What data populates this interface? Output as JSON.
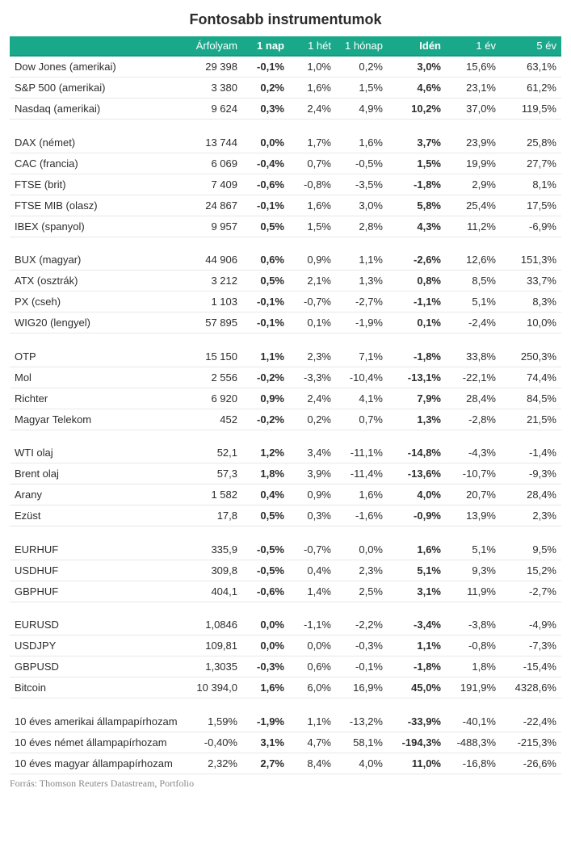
{
  "title": "Fontosabb instrumentumok",
  "footer": "Forrás: Thomson Reuters Datastream, Portfolio",
  "header_bg": "#1aa88a",
  "row_border": "#e8e8e8",
  "columns": [
    {
      "key": "name",
      "label": "",
      "bold": false,
      "align": "left"
    },
    {
      "key": "price",
      "label": "Árfolyam",
      "bold": false
    },
    {
      "key": "d1",
      "label": "1 nap",
      "bold": true
    },
    {
      "key": "w1",
      "label": "1 hét",
      "bold": false
    },
    {
      "key": "m1",
      "label": "1 hónap",
      "bold": false
    },
    {
      "key": "ytd",
      "label": "Idén",
      "bold": true
    },
    {
      "key": "y1",
      "label": "1 év",
      "bold": false
    },
    {
      "key": "y5",
      "label": "5 év",
      "bold": false
    }
  ],
  "groups": [
    [
      {
        "name": "Dow Jones (amerikai)",
        "price": "29 398",
        "d1": "-0,1%",
        "w1": "1,0%",
        "m1": "0,2%",
        "ytd": "3,0%",
        "y1": "15,6%",
        "y5": "63,1%"
      },
      {
        "name": "S&P 500 (amerikai)",
        "price": "3 380",
        "d1": "0,2%",
        "w1": "1,6%",
        "m1": "1,5%",
        "ytd": "4,6%",
        "y1": "23,1%",
        "y5": "61,2%"
      },
      {
        "name": "Nasdaq (amerikai)",
        "price": "9 624",
        "d1": "0,3%",
        "w1": "2,4%",
        "m1": "4,9%",
        "ytd": "10,2%",
        "y1": "37,0%",
        "y5": "119,5%"
      }
    ],
    [
      {
        "name": "DAX (német)",
        "price": "13 744",
        "d1": "0,0%",
        "w1": "1,7%",
        "m1": "1,6%",
        "ytd": "3,7%",
        "y1": "23,9%",
        "y5": "25,8%"
      },
      {
        "name": "CAC (francia)",
        "price": "6 069",
        "d1": "-0,4%",
        "w1": "0,7%",
        "m1": "-0,5%",
        "ytd": "1,5%",
        "y1": "19,9%",
        "y5": "27,7%"
      },
      {
        "name": "FTSE (brit)",
        "price": "7 409",
        "d1": "-0,6%",
        "w1": "-0,8%",
        "m1": "-3,5%",
        "ytd": "-1,8%",
        "y1": "2,9%",
        "y5": "8,1%"
      },
      {
        "name": "FTSE MIB (olasz)",
        "price": "24 867",
        "d1": "-0,1%",
        "w1": "1,6%",
        "m1": "3,0%",
        "ytd": "5,8%",
        "y1": "25,4%",
        "y5": "17,5%"
      },
      {
        "name": "IBEX (spanyol)",
        "price": "9 957",
        "d1": "0,5%",
        "w1": "1,5%",
        "m1": "2,8%",
        "ytd": "4,3%",
        "y1": "11,2%",
        "y5": "-6,9%"
      }
    ],
    [
      {
        "name": "BUX (magyar)",
        "price": "44 906",
        "d1": "0,6%",
        "w1": "0,9%",
        "m1": "1,1%",
        "ytd": "-2,6%",
        "y1": "12,6%",
        "y5": "151,3%"
      },
      {
        "name": "ATX (osztrák)",
        "price": "3 212",
        "d1": "0,5%",
        "w1": "2,1%",
        "m1": "1,3%",
        "ytd": "0,8%",
        "y1": "8,5%",
        "y5": "33,7%"
      },
      {
        "name": "PX (cseh)",
        "price": "1 103",
        "d1": "-0,1%",
        "w1": "-0,7%",
        "m1": "-2,7%",
        "ytd": "-1,1%",
        "y1": "5,1%",
        "y5": "8,3%"
      },
      {
        "name": "WIG20 (lengyel)",
        "price": "57 895",
        "d1": "-0,1%",
        "w1": "0,1%",
        "m1": "-1,9%",
        "ytd": "0,1%",
        "y1": "-2,4%",
        "y5": "10,0%"
      }
    ],
    [
      {
        "name": "OTP",
        "price": "15 150",
        "d1": "1,1%",
        "w1": "2,3%",
        "m1": "7,1%",
        "ytd": "-1,8%",
        "y1": "33,8%",
        "y5": "250,3%"
      },
      {
        "name": "Mol",
        "price": "2 556",
        "d1": "-0,2%",
        "w1": "-3,3%",
        "m1": "-10,4%",
        "ytd": "-13,1%",
        "y1": "-22,1%",
        "y5": "74,4%"
      },
      {
        "name": "Richter",
        "price": "6 920",
        "d1": "0,9%",
        "w1": "2,4%",
        "m1": "4,1%",
        "ytd": "7,9%",
        "y1": "28,4%",
        "y5": "84,5%"
      },
      {
        "name": "Magyar Telekom",
        "price": "452",
        "d1": "-0,2%",
        "w1": "0,2%",
        "m1": "0,7%",
        "ytd": "1,3%",
        "y1": "-2,8%",
        "y5": "21,5%"
      }
    ],
    [
      {
        "name": "WTI olaj",
        "price": "52,1",
        "d1": "1,2%",
        "w1": "3,4%",
        "m1": "-11,1%",
        "ytd": "-14,8%",
        "y1": "-4,3%",
        "y5": "-1,4%"
      },
      {
        "name": "Brent olaj",
        "price": "57,3",
        "d1": "1,8%",
        "w1": "3,9%",
        "m1": "-11,4%",
        "ytd": "-13,6%",
        "y1": "-10,7%",
        "y5": "-9,3%"
      },
      {
        "name": "Arany",
        "price": "1 582",
        "d1": "0,4%",
        "w1": "0,9%",
        "m1": "1,6%",
        "ytd": "4,0%",
        "y1": "20,7%",
        "y5": "28,4%"
      },
      {
        "name": "Ezüst",
        "price": "17,8",
        "d1": "0,5%",
        "w1": "0,3%",
        "m1": "-1,6%",
        "ytd": "-0,9%",
        "y1": "13,9%",
        "y5": "2,3%"
      }
    ],
    [
      {
        "name": "EURHUF",
        "price": "335,9",
        "d1": "-0,5%",
        "w1": "-0,7%",
        "m1": "0,0%",
        "ytd": "1,6%",
        "y1": "5,1%",
        "y5": "9,5%"
      },
      {
        "name": "USDHUF",
        "price": "309,8",
        "d1": "-0,5%",
        "w1": "0,4%",
        "m1": "2,3%",
        "ytd": "5,1%",
        "y1": "9,3%",
        "y5": "15,2%"
      },
      {
        "name": "GBPHUF",
        "price": "404,1",
        "d1": "-0,6%",
        "w1": "1,4%",
        "m1": "2,5%",
        "ytd": "3,1%",
        "y1": "11,9%",
        "y5": "-2,7%"
      }
    ],
    [
      {
        "name": "EURUSD",
        "price": "1,0846",
        "d1": "0,0%",
        "w1": "-1,1%",
        "m1": "-2,2%",
        "ytd": "-3,4%",
        "y1": "-3,8%",
        "y5": "-4,9%"
      },
      {
        "name": "USDJPY",
        "price": "109,81",
        "d1": "0,0%",
        "w1": "0,0%",
        "m1": "-0,3%",
        "ytd": "1,1%",
        "y1": "-0,8%",
        "y5": "-7,3%"
      },
      {
        "name": "GBPUSD",
        "price": "1,3035",
        "d1": "-0,3%",
        "w1": "0,6%",
        "m1": "-0,1%",
        "ytd": "-1,8%",
        "y1": "1,8%",
        "y5": "-15,4%"
      },
      {
        "name": "Bitcoin",
        "price": "10 394,0",
        "d1": "1,6%",
        "w1": "6,0%",
        "m1": "16,9%",
        "ytd": "45,0%",
        "y1": "191,9%",
        "y5": "4328,6%"
      }
    ],
    [
      {
        "name": "10 éves amerikai állampapírhozam",
        "price": "1,59%",
        "d1": "-1,9%",
        "w1": "1,1%",
        "m1": "-13,2%",
        "ytd": "-33,9%",
        "y1": "-40,1%",
        "y5": "-22,4%"
      },
      {
        "name": "10 éves német állampapírhozam",
        "price": "-0,40%",
        "d1": "3,1%",
        "w1": "4,7%",
        "m1": "58,1%",
        "ytd": "-194,3%",
        "y1": "-488,3%",
        "y5": "-215,3%"
      },
      {
        "name": "10 éves magyar állampapírhozam",
        "price": "2,32%",
        "d1": "2,7%",
        "w1": "8,4%",
        "m1": "4,0%",
        "ytd": "11,0%",
        "y1": "-16,8%",
        "y5": "-26,6%"
      }
    ]
  ]
}
